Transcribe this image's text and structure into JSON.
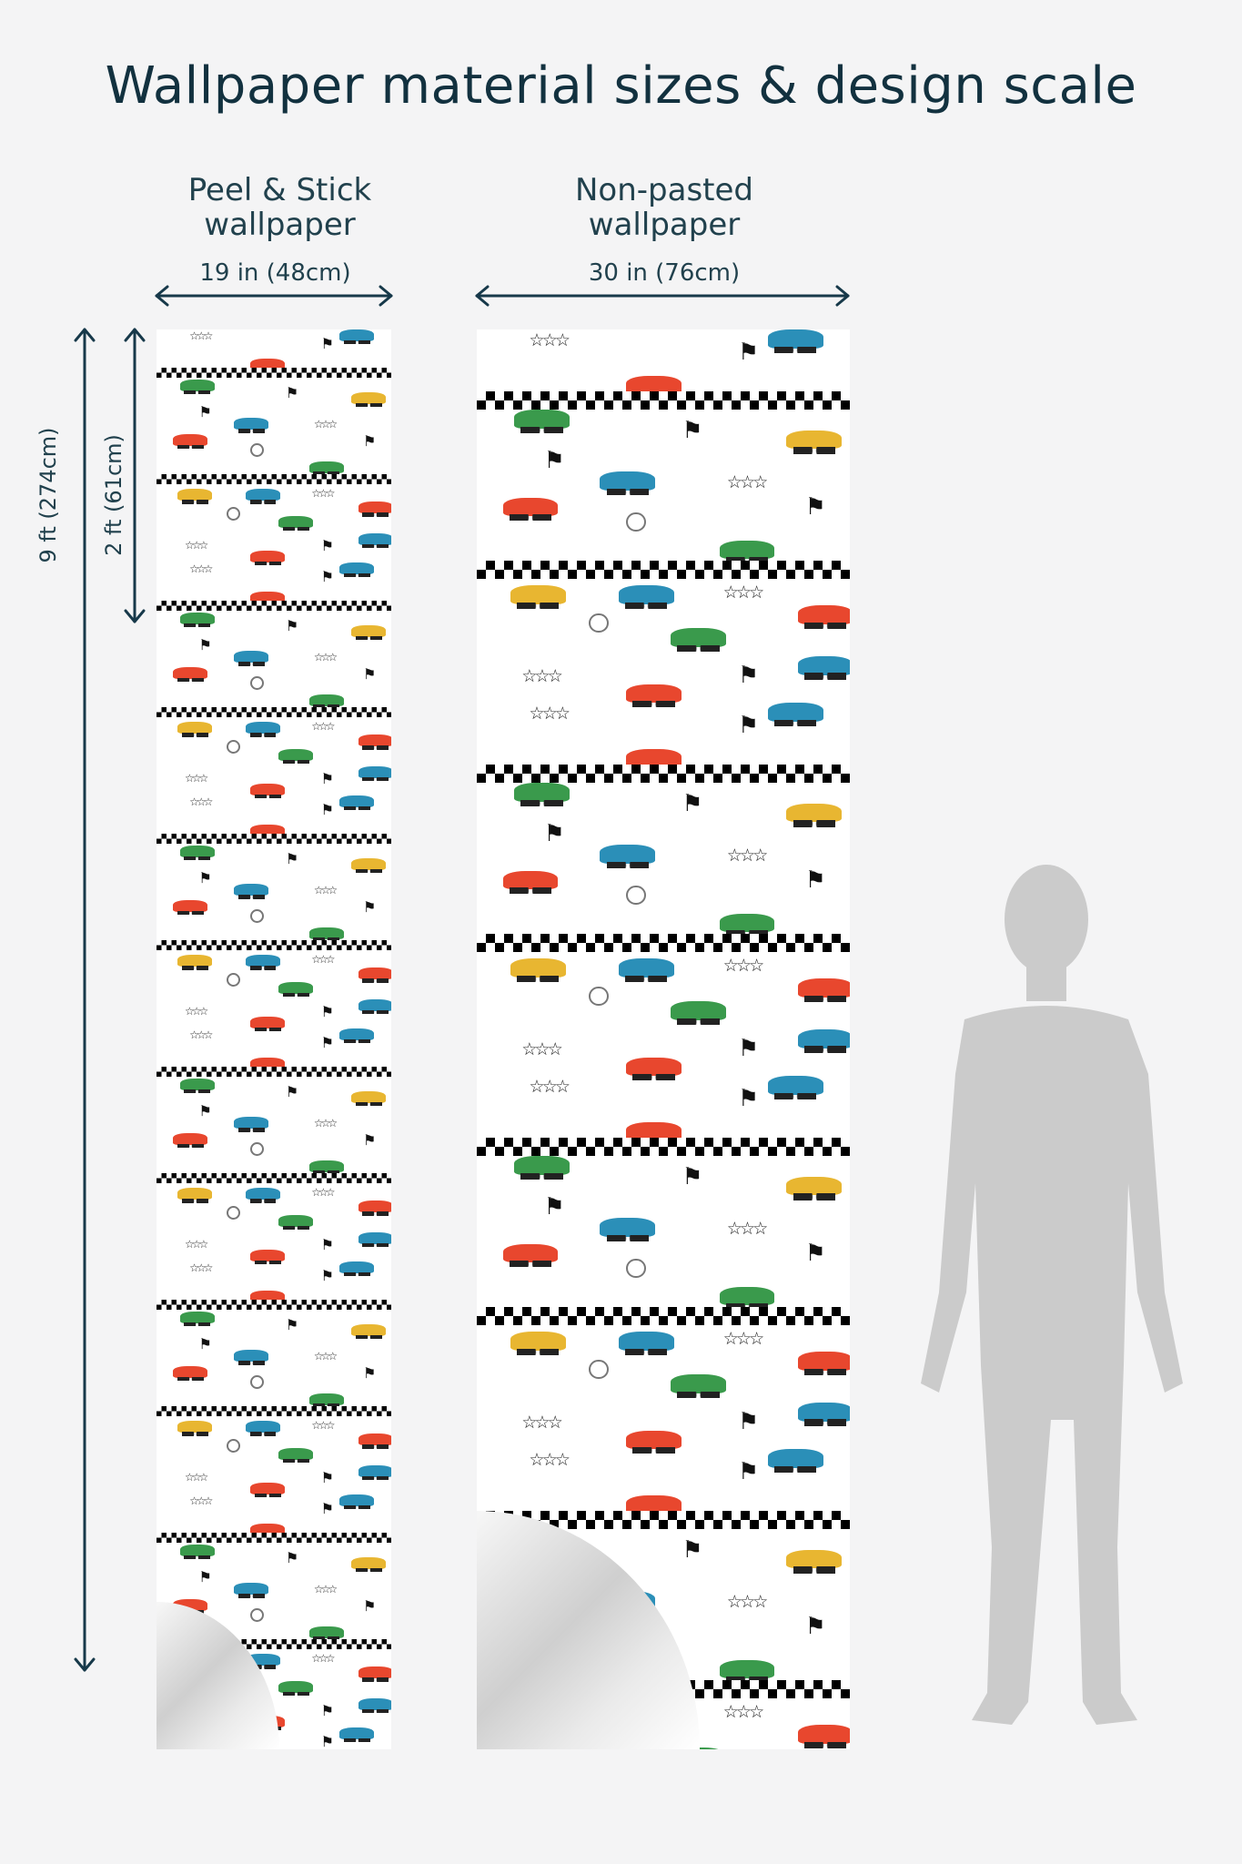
{
  "page": {
    "title": "Wallpaper material sizes & design scale"
  },
  "peel_stick": {
    "label_line1": "Peel & Stick",
    "label_line2": "wallpaper",
    "width_label": "19 in (48cm)"
  },
  "non_pasted": {
    "label_line1": "Non-pasted",
    "label_line2": "wallpaper",
    "width_label": "30 in (76cm)"
  },
  "heights": {
    "total_label": "9 ft (274cm)",
    "repeat_label": "2 ft (61cm)"
  },
  "colors": {
    "text": "#12313f",
    "car_red": "#e8472e",
    "car_blue": "#2b8fb8",
    "car_green": "#3a9a4c",
    "car_yellow": "#e8b631",
    "silhouette": "#cbcbcb"
  },
  "icons": [
    "arrow-icon",
    "checkered-flag-icon",
    "star-icon",
    "medal-icon",
    "car-icon",
    "person-silhouette-icon"
  ]
}
